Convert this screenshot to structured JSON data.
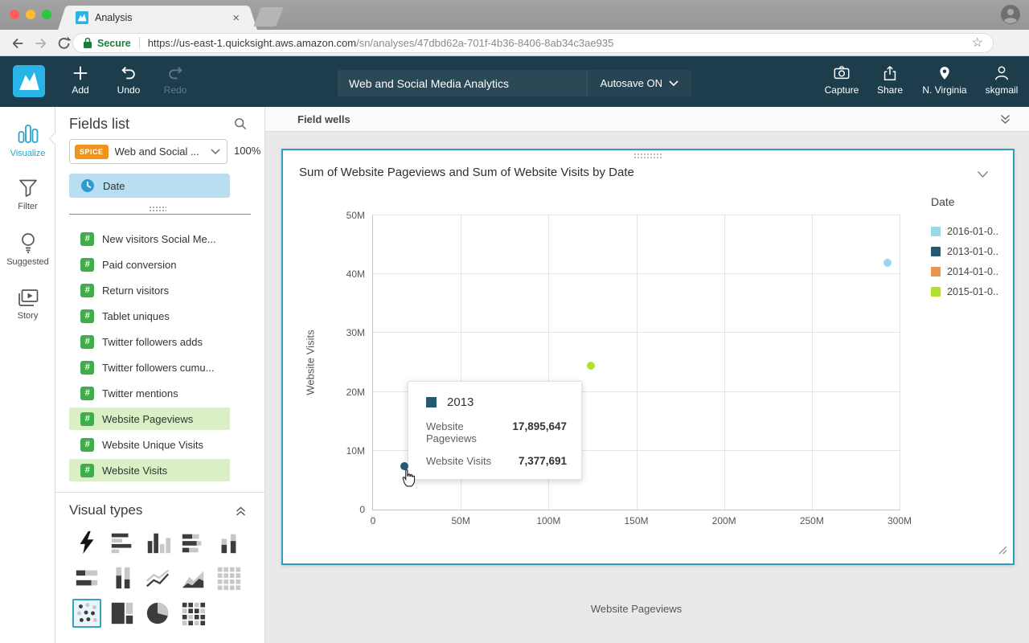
{
  "browser": {
    "tab": {
      "title": "Analysis",
      "close_glyph": "×"
    },
    "address": {
      "secure_label": "Secure",
      "url_domain": "https://us-east-1.quicksight.aws.amazon.com",
      "url_path": "/sn/analyses/47dbd62a-701f-4b36-8406-8ab34c3ae935",
      "star_glyph": "☆"
    }
  },
  "topnav": {
    "add_label": "Add",
    "undo_label": "Undo",
    "redo_label": "Redo",
    "analysis_title": "Web and Social Media Analytics",
    "autosave_label": "Autosave ON",
    "capture_label": "Capture",
    "share_label": "Share",
    "region_label": "N. Virginia",
    "user_label": "skgmail"
  },
  "left_rail": {
    "items": [
      {
        "id": "visualize",
        "label": "Visualize",
        "active": true
      },
      {
        "id": "filter",
        "label": "Filter",
        "active": false
      },
      {
        "id": "suggested",
        "label": "Suggested",
        "active": false
      },
      {
        "id": "story",
        "label": "Story",
        "active": false
      }
    ]
  },
  "fields_panel": {
    "title": "Fields list",
    "dataset": {
      "badge": "SPICE",
      "name": "Web and Social ...",
      "progress": "100%"
    },
    "dimension_fields": [
      {
        "name": "Date",
        "type": "date",
        "selected": true
      }
    ],
    "measure_fields": [
      {
        "name": "New visitors Social Me...",
        "highlighted": false
      },
      {
        "name": "Paid conversion",
        "highlighted": false
      },
      {
        "name": "Return visitors",
        "highlighted": false
      },
      {
        "name": "Tablet uniques",
        "highlighted": false
      },
      {
        "name": "Twitter followers adds",
        "highlighted": false
      },
      {
        "name": "Twitter followers cumu...",
        "highlighted": false
      },
      {
        "name": "Twitter mentions",
        "highlighted": false
      },
      {
        "name": "Website Pageviews",
        "highlighted": true
      },
      {
        "name": "Website Unique Visits",
        "highlighted": false
      },
      {
        "name": "Website Visits",
        "highlighted": true
      }
    ]
  },
  "visual_types": {
    "title": "Visual types",
    "selected": "scatter-plot",
    "items": [
      "auto-graph",
      "horizontal-bar",
      "vertical-bar",
      "horizontal-stacked-bar",
      "vertical-stacked-bar",
      "horizontal-100-stacked-bar",
      "vertical-100-stacked-bar",
      "line-chart",
      "area-chart",
      "pivot-table",
      "scatter-plot",
      "tree-map",
      "pie-chart",
      "heat-map"
    ]
  },
  "workspace": {
    "field_wells_label": "Field wells"
  },
  "visual": {
    "title": "Sum of Website Pageviews and Sum of Website Visits by Date"
  },
  "chart_data": {
    "type": "scatter",
    "title": "Sum of Website Pageviews and Sum of Website Visits by Date",
    "xlabel": "Website Pageviews",
    "ylabel": "Website Visits",
    "xlim": [
      0,
      300000000
    ],
    "ylim": [
      0,
      50000000
    ],
    "grid": true,
    "x_ticks": [
      {
        "value": 0,
        "label": "0"
      },
      {
        "value": 50000000,
        "label": "50M"
      },
      {
        "value": 100000000,
        "label": "100M"
      },
      {
        "value": 150000000,
        "label": "150M"
      },
      {
        "value": 200000000,
        "label": "200M"
      },
      {
        "value": 250000000,
        "label": "250M"
      },
      {
        "value": 300000000,
        "label": "300M"
      }
    ],
    "y_ticks": [
      {
        "value": 0,
        "label": "0"
      },
      {
        "value": 10000000,
        "label": "10M"
      },
      {
        "value": 20000000,
        "label": "20M"
      },
      {
        "value": 30000000,
        "label": "30M"
      },
      {
        "value": 40000000,
        "label": "40M"
      },
      {
        "value": 50000000,
        "label": "50M"
      }
    ],
    "legend": {
      "title": "Date",
      "position": "right",
      "entries": [
        {
          "label": "2016-01-0..",
          "color": "#98d6ed"
        },
        {
          "label": "2013-01-0..",
          "color": "#24596f"
        },
        {
          "label": "2014-01-0..",
          "color": "#ee954d"
        },
        {
          "label": "2015-01-0..",
          "color": "#b2e02e"
        }
      ]
    },
    "points": [
      {
        "series": "2016",
        "x": 293000000,
        "y": 42000000,
        "color": "#98d6ed"
      },
      {
        "series": "2015",
        "x": 124000000,
        "y": 24500000,
        "color": "#b2e02e"
      },
      {
        "series": "2013",
        "x": 17895647,
        "y": 7377691,
        "color": "#24596f"
      }
    ],
    "tooltip": {
      "series_label": "2013",
      "series_color": "#24596f",
      "rows": [
        {
          "label": "Website Pageviews",
          "value": "17,895,647"
        },
        {
          "label": "Website Visits",
          "value": "7,377,691"
        }
      ]
    }
  }
}
